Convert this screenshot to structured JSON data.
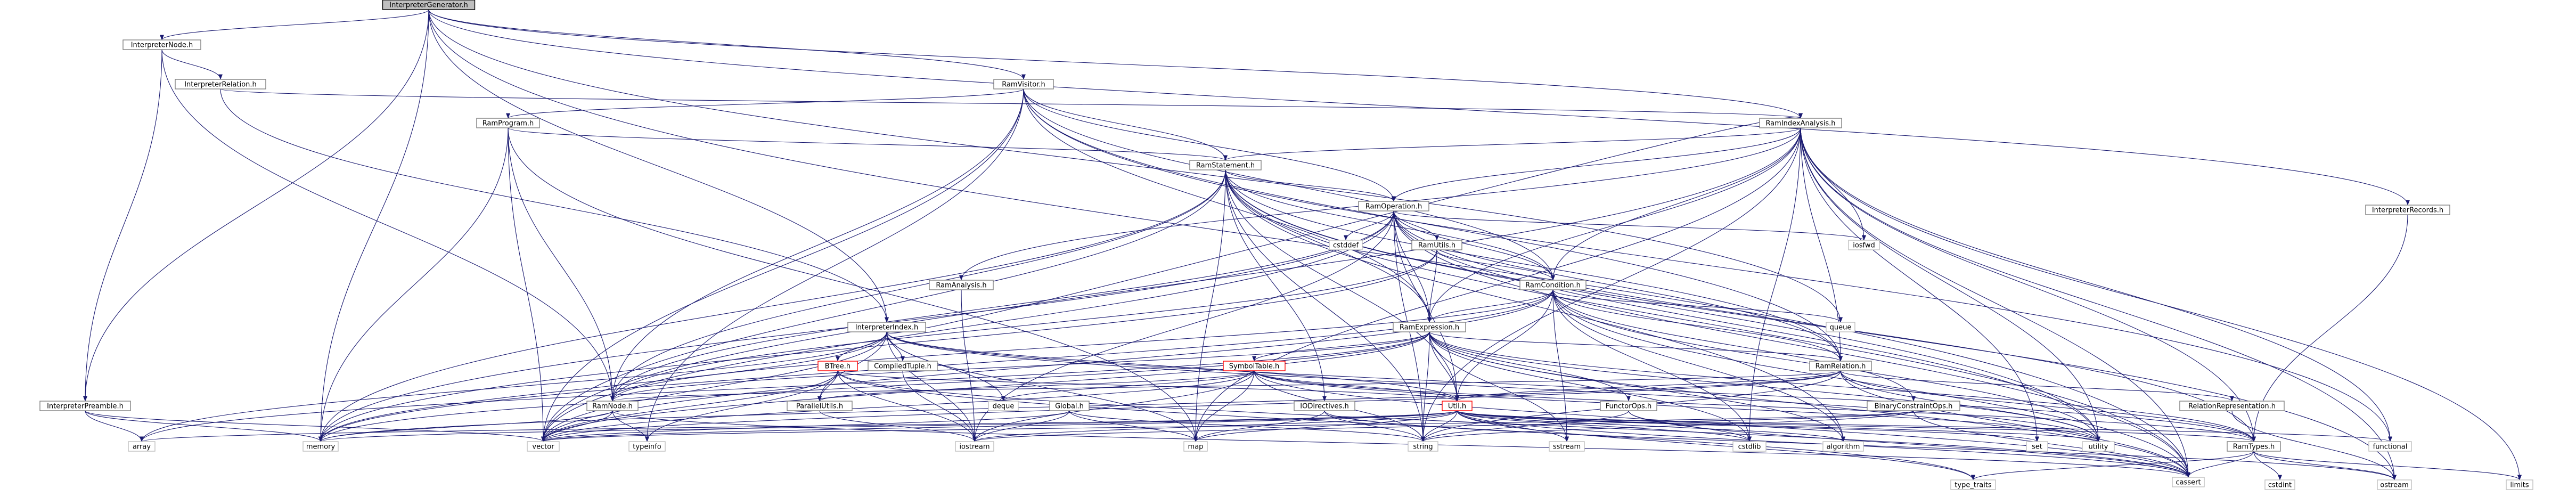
{
  "graph": {
    "root": "InterpreterGenerator.h",
    "nodes": [
      {
        "id": "InterpreterGenerator.h",
        "style": "root"
      },
      {
        "id": "InterpreterNode.h",
        "style": "lnk"
      },
      {
        "id": "InterpreterRelation.h",
        "style": "lnk"
      },
      {
        "id": "RamVisitor.h",
        "style": "lnk"
      },
      {
        "id": "RamIndexAnalysis.h",
        "style": "lnk"
      },
      {
        "id": "InterpreterRecords.h",
        "style": "lnk"
      },
      {
        "id": "RamProgram.h",
        "style": "lnk"
      },
      {
        "id": "RamStatement.h",
        "style": "lnk"
      },
      {
        "id": "RamOperation.h",
        "style": "lnk"
      },
      {
        "id": "cstddef",
        "style": "leaf"
      },
      {
        "id": "RamUtils.h",
        "style": "lnk"
      },
      {
        "id": "RamCondition.h",
        "style": "lnk"
      },
      {
        "id": "iosfwd",
        "style": "leaf"
      },
      {
        "id": "RamAnalysis.h",
        "style": "lnk"
      },
      {
        "id": "InterpreterIndex.h",
        "style": "lnk"
      },
      {
        "id": "RamExpression.h",
        "style": "lnk"
      },
      {
        "id": "queue",
        "style": "leaf"
      },
      {
        "id": "RamRelation.h",
        "style": "lnk"
      },
      {
        "id": "BTree.h",
        "style": "red"
      },
      {
        "id": "CompiledTuple.h",
        "style": "lnk"
      },
      {
        "id": "SymbolTable.h",
        "style": "red"
      },
      {
        "id": "Global.h",
        "style": "lnk"
      },
      {
        "id": "IODirectives.h",
        "style": "lnk"
      },
      {
        "id": "Util.h",
        "style": "red"
      },
      {
        "id": "FunctorOps.h",
        "style": "lnk"
      },
      {
        "id": "BinaryConstraintOps.h",
        "style": "lnk"
      },
      {
        "id": "RelationRepresentation.h",
        "style": "lnk"
      },
      {
        "id": "InterpreterPreamble.h",
        "style": "lnk"
      },
      {
        "id": "ParallelUtils.h",
        "style": "lnk"
      },
      {
        "id": "deque",
        "style": "leaf"
      },
      {
        "id": "RamNode.h",
        "style": "lnk"
      },
      {
        "id": "RamTypes.h",
        "style": "lnk"
      },
      {
        "id": "array",
        "style": "leaf"
      },
      {
        "id": "memory",
        "style": "leaf"
      },
      {
        "id": "vector",
        "style": "leaf"
      },
      {
        "id": "typeinfo",
        "style": "leaf"
      },
      {
        "id": "iostream",
        "style": "leaf"
      },
      {
        "id": "map",
        "style": "leaf"
      },
      {
        "id": "string",
        "style": "leaf"
      },
      {
        "id": "sstream",
        "style": "leaf"
      },
      {
        "id": "cstdlib",
        "style": "leaf"
      },
      {
        "id": "algorithm",
        "style": "leaf"
      },
      {
        "id": "set",
        "style": "leaf"
      },
      {
        "id": "utility",
        "style": "leaf"
      },
      {
        "id": "functional",
        "style": "leaf"
      },
      {
        "id": "cassert",
        "style": "leaf"
      },
      {
        "id": "type_traits",
        "style": "leaf"
      },
      {
        "id": "ostream",
        "style": "leaf"
      },
      {
        "id": "limits",
        "style": "leaf"
      },
      {
        "id": "cstdint",
        "style": "leaf"
      }
    ],
    "edges": [
      [
        "InterpreterGenerator.h",
        "InterpreterNode.h"
      ],
      [
        "InterpreterGenerator.h",
        "RamVisitor.h"
      ],
      [
        "InterpreterGenerator.h",
        "RamIndexAnalysis.h"
      ],
      [
        "InterpreterGenerator.h",
        "InterpreterRecords.h"
      ],
      [
        "InterpreterGenerator.h",
        "InterpreterPreamble.h"
      ],
      [
        "InterpreterGenerator.h",
        "InterpreterIndex.h"
      ],
      [
        "InterpreterGenerator.h",
        "queue"
      ],
      [
        "InterpreterGenerator.h",
        "memory"
      ],
      [
        "InterpreterGenerator.h",
        "cassert"
      ],
      [
        "InterpreterNode.h",
        "InterpreterRelation.h"
      ],
      [
        "InterpreterNode.h",
        "InterpreterPreamble.h"
      ],
      [
        "InterpreterNode.h",
        "RamNode.h"
      ],
      [
        "InterpreterRelation.h",
        "RamIndexAnalysis.h"
      ],
      [
        "InterpreterRelation.h",
        "InterpreterIndex.h"
      ],
      [
        "RamVisitor.h",
        "RamProgram.h"
      ],
      [
        "RamVisitor.h",
        "RamStatement.h"
      ],
      [
        "RamVisitor.h",
        "RamOperation.h"
      ],
      [
        "RamVisitor.h",
        "RamCondition.h"
      ],
      [
        "RamVisitor.h",
        "RamExpression.h"
      ],
      [
        "RamVisitor.h",
        "RamRelation.h"
      ],
      [
        "RamVisitor.h",
        "RamNode.h"
      ],
      [
        "RamVisitor.h",
        "typeinfo"
      ],
      [
        "RamVisitor.h",
        "vector"
      ],
      [
        "RamVisitor.h",
        "functional"
      ],
      [
        "RamIndexAnalysis.h",
        "RamAnalysis.h"
      ],
      [
        "RamIndexAnalysis.h",
        "RamStatement.h"
      ],
      [
        "RamIndexAnalysis.h",
        "RamOperation.h"
      ],
      [
        "RamIndexAnalysis.h",
        "RamCondition.h"
      ],
      [
        "RamIndexAnalysis.h",
        "RamExpression.h"
      ],
      [
        "RamIndexAnalysis.h",
        "RamRelation.h"
      ],
      [
        "RamIndexAnalysis.h",
        "RamTypes.h"
      ],
      [
        "RamIndexAnalysis.h",
        "iosfwd"
      ],
      [
        "RamIndexAnalysis.h",
        "string"
      ],
      [
        "RamIndexAnalysis.h",
        "map"
      ],
      [
        "RamIndexAnalysis.h",
        "set"
      ],
      [
        "RamIndexAnalysis.h",
        "cassert"
      ],
      [
        "RamIndexAnalysis.h",
        "limits"
      ],
      [
        "RamIndexAnalysis.h",
        "ostream"
      ],
      [
        "RamIndexAnalysis.h",
        "utility"
      ],
      [
        "RamIndexAnalysis.h",
        "vector"
      ],
      [
        "RamIndexAnalysis.h",
        "cstdlib"
      ],
      [
        "RamIndexAnalysis.h",
        "functional"
      ],
      [
        "InterpreterRecords.h",
        "RamTypes.h"
      ],
      [
        "RamProgram.h",
        "RamStatement.h"
      ],
      [
        "RamProgram.h",
        "RamNode.h"
      ],
      [
        "RamProgram.h",
        "memory"
      ],
      [
        "RamProgram.h",
        "vector"
      ],
      [
        "RamProgram.h",
        "map"
      ],
      [
        "RamStatement.h",
        "RamOperation.h"
      ],
      [
        "RamStatement.h",
        "RamCondition.h"
      ],
      [
        "RamStatement.h",
        "RamExpression.h"
      ],
      [
        "RamStatement.h",
        "RamRelation.h"
      ],
      [
        "RamStatement.h",
        "RamNode.h"
      ],
      [
        "RamStatement.h",
        "IODirectives.h"
      ],
      [
        "RamStatement.h",
        "Util.h"
      ],
      [
        "RamStatement.h",
        "memory"
      ],
      [
        "RamStatement.h",
        "vector"
      ],
      [
        "RamStatement.h",
        "string"
      ],
      [
        "RamStatement.h",
        "map"
      ],
      [
        "RamStatement.h",
        "ostream"
      ],
      [
        "RamStatement.h",
        "utility"
      ],
      [
        "RamStatement.h",
        "algorithm"
      ],
      [
        "RamStatement.h",
        "cassert"
      ],
      [
        "RamOperation.h",
        "cstddef"
      ],
      [
        "RamOperation.h",
        "RamUtils.h"
      ],
      [
        "RamOperation.h",
        "RamCondition.h"
      ],
      [
        "RamOperation.h",
        "RamExpression.h"
      ],
      [
        "RamOperation.h",
        "RamRelation.h"
      ],
      [
        "RamOperation.h",
        "RamNode.h"
      ],
      [
        "RamOperation.h",
        "RamTypes.h"
      ],
      [
        "RamOperation.h",
        "Util.h"
      ],
      [
        "RamOperation.h",
        "iosfwd"
      ],
      [
        "RamOperation.h",
        "memory"
      ],
      [
        "RamOperation.h",
        "vector"
      ],
      [
        "RamOperation.h",
        "string"
      ],
      [
        "RamOperation.h",
        "cassert"
      ],
      [
        "RamOperation.h",
        "utility"
      ],
      [
        "RamOperation.h",
        "iostream"
      ],
      [
        "RamUtils.h",
        "RamCondition.h"
      ],
      [
        "RamUtils.h",
        "RamExpression.h"
      ],
      [
        "RamUtils.h",
        "RamNode.h"
      ],
      [
        "RamUtils.h",
        "memory"
      ],
      [
        "RamCondition.h",
        "RamExpression.h"
      ],
      [
        "RamCondition.h",
        "RamRelation.h"
      ],
      [
        "RamCondition.h",
        "RamNode.h"
      ],
      [
        "RamCondition.h",
        "BinaryConstraintOps.h"
      ],
      [
        "RamCondition.h",
        "Util.h"
      ],
      [
        "RamCondition.h",
        "queue"
      ],
      [
        "RamCondition.h",
        "sstream"
      ],
      [
        "RamCondition.h",
        "cstdlib"
      ],
      [
        "RamCondition.h",
        "algorithm"
      ],
      [
        "RamCondition.h",
        "vector"
      ],
      [
        "RamCondition.h",
        "memory"
      ],
      [
        "RamCondition.h",
        "utility"
      ],
      [
        "RamCondition.h",
        "cassert"
      ],
      [
        "RamAnalysis.h",
        "iostream"
      ],
      [
        "RamExpression.h",
        "SymbolTable.h"
      ],
      [
        "RamExpression.h",
        "RamRelation.h"
      ],
      [
        "RamExpression.h",
        "RamNode.h"
      ],
      [
        "RamExpression.h",
        "RamTypes.h"
      ],
      [
        "RamExpression.h",
        "FunctorOps.h"
      ],
      [
        "RamExpression.h",
        "Util.h"
      ],
      [
        "RamExpression.h",
        "array"
      ],
      [
        "RamExpression.h",
        "memory"
      ],
      [
        "RamExpression.h",
        "vector"
      ],
      [
        "RamExpression.h",
        "string"
      ],
      [
        "RamExpression.h",
        "sstream"
      ],
      [
        "RamExpression.h",
        "cstdlib"
      ],
      [
        "RamExpression.h",
        "algorithm"
      ],
      [
        "RamExpression.h",
        "utility"
      ],
      [
        "RamExpression.h",
        "cassert"
      ],
      [
        "RamRelation.h",
        "RamNode.h"
      ],
      [
        "RamRelation.h",
        "RamTypes.h"
      ],
      [
        "RamRelation.h",
        "RelationRepresentation.h"
      ],
      [
        "RamRelation.h",
        "Util.h"
      ],
      [
        "RamRelation.h",
        "memory"
      ],
      [
        "RamRelation.h",
        "string"
      ],
      [
        "RamRelation.h",
        "vector"
      ],
      [
        "RamRelation.h",
        "utility"
      ],
      [
        "RamRelation.h",
        "cassert"
      ],
      [
        "InterpreterIndex.h",
        "BTree.h"
      ],
      [
        "InterpreterIndex.h",
        "CompiledTuple.h"
      ],
      [
        "InterpreterIndex.h",
        "RamIndexAnalysis.h"
      ],
      [
        "InterpreterIndex.h",
        "RamTypes.h"
      ],
      [
        "InterpreterIndex.h",
        "Util.h"
      ],
      [
        "InterpreterIndex.h",
        "ParallelUtils.h"
      ],
      [
        "InterpreterIndex.h",
        "array"
      ],
      [
        "InterpreterIndex.h",
        "memory"
      ],
      [
        "InterpreterIndex.h",
        "vector"
      ],
      [
        "InterpreterIndex.h",
        "deque"
      ],
      [
        "InterpreterIndex.h",
        "map"
      ],
      [
        "InterpreterIndex.h",
        "iostream"
      ],
      [
        "InterpreterIndex.h",
        "utility"
      ],
      [
        "BTree.h",
        "ParallelUtils.h"
      ],
      [
        "BTree.h",
        "Util.h"
      ],
      [
        "BTree.h",
        "vector"
      ],
      [
        "BTree.h",
        "iostream"
      ],
      [
        "BTree.h",
        "cassert"
      ],
      [
        "BTree.h",
        "type_traits"
      ],
      [
        "BTree.h",
        "typeinfo"
      ],
      [
        "CompiledTuple.h",
        "iostream"
      ],
      [
        "SymbolTable.h",
        "ParallelUtils.h"
      ],
      [
        "SymbolTable.h",
        "RamTypes.h"
      ],
      [
        "SymbolTable.h",
        "Util.h"
      ],
      [
        "SymbolTable.h",
        "deque"
      ],
      [
        "SymbolTable.h",
        "iostream"
      ],
      [
        "SymbolTable.h",
        "string"
      ],
      [
        "SymbolTable.h",
        "utility"
      ],
      [
        "SymbolTable.h",
        "vector"
      ],
      [
        "SymbolTable.h",
        "map"
      ],
      [
        "SymbolTable.h",
        "cassert"
      ],
      [
        "Global.h",
        "iostream"
      ],
      [
        "Global.h",
        "map"
      ],
      [
        "Global.h",
        "string"
      ],
      [
        "Global.h",
        "vector"
      ],
      [
        "IODirectives.h",
        "map"
      ],
      [
        "IODirectives.h",
        "string"
      ],
      [
        "IODirectives.h",
        "ostream"
      ],
      [
        "Util.h",
        "RamTypes.h"
      ],
      [
        "Util.h",
        "iostream"
      ],
      [
        "Util.h",
        "map"
      ],
      [
        "Util.h",
        "memory"
      ],
      [
        "Util.h",
        "set"
      ],
      [
        "Util.h",
        "sstream"
      ],
      [
        "Util.h",
        "string"
      ],
      [
        "Util.h",
        "utility"
      ],
      [
        "Util.h",
        "vector"
      ],
      [
        "Util.h",
        "cstdlib"
      ],
      [
        "Util.h",
        "algorithm"
      ],
      [
        "Util.h",
        "functional"
      ],
      [
        "Util.h",
        "cassert"
      ],
      [
        "Util.h",
        "type_traits"
      ],
      [
        "Util.h",
        "array"
      ],
      [
        "FunctorOps.h",
        "cassert"
      ],
      [
        "FunctorOps.h",
        "cstdlib"
      ],
      [
        "FunctorOps.h",
        "string"
      ],
      [
        "BinaryConstraintOps.h",
        "cassert"
      ],
      [
        "BinaryConstraintOps.h",
        "iostream"
      ],
      [
        "BinaryConstraintOps.h",
        "string"
      ],
      [
        "BinaryConstraintOps.h",
        "vector"
      ],
      [
        "RelationRepresentation.h",
        "ostream"
      ],
      [
        "InterpreterPreamble.h",
        "array"
      ],
      [
        "InterpreterPreamble.h",
        "memory"
      ],
      [
        "InterpreterPreamble.h",
        "vector"
      ],
      [
        "ParallelUtils.h",
        "iostream"
      ],
      [
        "RamNode.h",
        "typeinfo"
      ],
      [
        "RamNode.h",
        "vector"
      ],
      [
        "RamNode.h",
        "memory"
      ],
      [
        "RamNode.h",
        "cassert"
      ],
      [
        "RamTypes.h",
        "cassert"
      ],
      [
        "RamTypes.h",
        "type_traits"
      ],
      [
        "RamTypes.h",
        "ostream"
      ],
      [
        "RamTypes.h",
        "limits"
      ],
      [
        "RamTypes.h",
        "cstdint"
      ]
    ]
  }
}
